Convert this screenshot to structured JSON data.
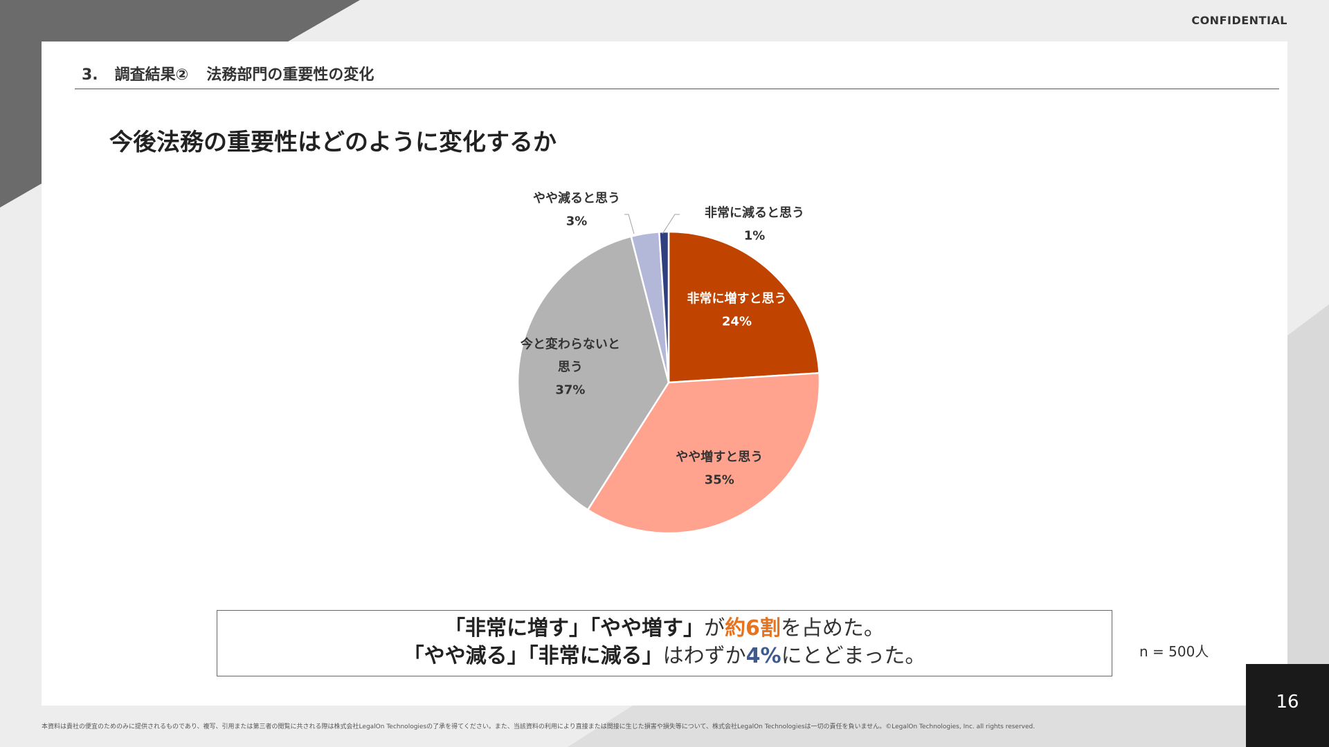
{
  "header": {
    "confidential": "CONFIDENTIAL",
    "section_number": "3.",
    "section_label": "調査結果②",
    "section_title": "法務部門の重要性の変化"
  },
  "main_title": "今後法務の重要性はどのように変化するか",
  "chart_data": {
    "type": "pie",
    "title": "",
    "start_angle_deg": 0,
    "direction": "clockwise",
    "slices": [
      {
        "label": "非常に増すと思う",
        "label_lines": [
          "非常に増すと思う"
        ],
        "value": 24,
        "value_label": "24%",
        "color": "#c04400",
        "label_color": "#ffffff",
        "label_position": "inside"
      },
      {
        "label": "やや増すと思う",
        "label_lines": [
          "やや増すと思う"
        ],
        "value": 35,
        "value_label": "35%",
        "color": "#ffa28e",
        "label_color": "#333333",
        "label_position": "inside"
      },
      {
        "label": "今と変わらないと思う",
        "label_lines": [
          "今と変わらないと",
          "思う"
        ],
        "value": 37,
        "value_label": "37%",
        "color": "#b3b3b3",
        "label_color": "#333333",
        "label_position": "inside"
      },
      {
        "label": "やや減ると思う",
        "label_lines": [
          "やや減ると思う"
        ],
        "value": 3,
        "value_label": "3%",
        "color": "#b3b8d9",
        "label_color": "#333333",
        "label_position": "outside"
      },
      {
        "label": "非常に減ると思う",
        "label_lines": [
          "非常に減ると思う"
        ],
        "value": 1,
        "value_label": "1%",
        "color": "#2f3f7f",
        "label_color": "#333333",
        "label_position": "outside"
      }
    ]
  },
  "summary": {
    "line1_part1": "「非常に増す」「やや増す」",
    "line1_part2": "が",
    "line1_highlight": "約6割",
    "line1_part3": "を占めた。",
    "line2_part1": "「やや減る」「非常に減る」",
    "line2_part2": "はわずか",
    "line2_highlight": "4%",
    "line2_part3": "にとどまった。",
    "highlight_color_1": "#e8731c",
    "highlight_color_2": "#3f5a8e"
  },
  "sample_size": "n = 500人",
  "footer": {
    "disclaimer": "本資料は貴社の便宜のためのみに提供されるものであり、複写、引用または第三者の閲覧に共される際は株式会社LegalOn Technologiesの了承を得てください。また、当該資料の利用により直接または間接に生じた損害や損失等について、株式会社LegalOn Technologiesは一切の責任を負いません。©LegalOn Technologies, Inc. all rights reserved.",
    "page_number": "16"
  }
}
